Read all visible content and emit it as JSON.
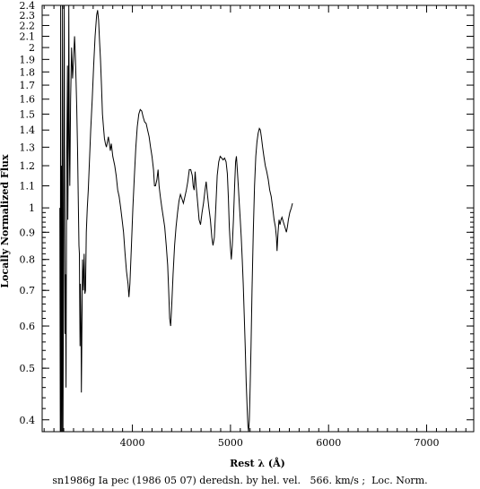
{
  "chart_data": {
    "type": "line",
    "xlabel": "Rest λ (Å)",
    "ylabel": "Locally Normalized Flux",
    "caption": "sn1986g Ia pec (1986 05 07) deredsh. by hel. vel.   566. km/s ;  Loc. Norm.",
    "xlim": [
      3080,
      7480
    ],
    "ylim": [
      0.38,
      2.4
    ],
    "y_scale": "log",
    "x_ticks": [
      4000,
      5000,
      6000,
      7000
    ],
    "x_minor_step": 100,
    "y_ticks": [
      0.4,
      0.5,
      0.6,
      0.7,
      0.8,
      0.9,
      1,
      1.1,
      1.2,
      1.3,
      1.4,
      1.5,
      1.6,
      1.7,
      1.8,
      1.9,
      2,
      2.1,
      2.2,
      2.3,
      2.4
    ],
    "grid": false,
    "series": [
      {
        "points": [
          [
            3260,
            1.0
          ],
          [
            3265,
            0.38
          ],
          [
            3268,
            2.4
          ],
          [
            3272,
            0.38
          ],
          [
            3276,
            1.2
          ],
          [
            3282,
            0.38
          ],
          [
            3287,
            2.4
          ],
          [
            3292,
            0.38
          ],
          [
            3300,
            1.0
          ],
          [
            3305,
            2.4
          ],
          [
            3312,
            0.58
          ],
          [
            3318,
            0.75
          ],
          [
            3323,
            0.46
          ],
          [
            3330,
            1.2
          ],
          [
            3338,
            1.85
          ],
          [
            3342,
            0.95
          ],
          [
            3348,
            1.45
          ],
          [
            3352,
            2.4
          ],
          [
            3357,
            1.3
          ],
          [
            3362,
            1.1
          ],
          [
            3370,
            1.6
          ],
          [
            3380,
            2.0
          ],
          [
            3390,
            1.75
          ],
          [
            3400,
            1.9
          ],
          [
            3410,
            2.1
          ],
          [
            3418,
            1.95
          ],
          [
            3425,
            1.75
          ],
          [
            3432,
            1.55
          ],
          [
            3440,
            1.3
          ],
          [
            3448,
            1.05
          ],
          [
            3455,
            0.85
          ],
          [
            3460,
            0.82
          ],
          [
            3466,
            0.55
          ],
          [
            3470,
            0.72
          ],
          [
            3476,
            0.6
          ],
          [
            3480,
            0.45
          ],
          [
            3486,
            0.62
          ],
          [
            3492,
            0.8
          ],
          [
            3500,
            0.7
          ],
          [
            3508,
            0.82
          ],
          [
            3515,
            0.69
          ],
          [
            3522,
            0.7
          ],
          [
            3530,
            0.9
          ],
          [
            3540,
            1.0
          ],
          [
            3550,
            1.08
          ],
          [
            3560,
            1.2
          ],
          [
            3575,
            1.4
          ],
          [
            3590,
            1.6
          ],
          [
            3605,
            1.85
          ],
          [
            3620,
            2.1
          ],
          [
            3635,
            2.3
          ],
          [
            3645,
            2.35
          ],
          [
            3655,
            2.25
          ],
          [
            3665,
            2.05
          ],
          [
            3675,
            1.9
          ],
          [
            3685,
            1.7
          ],
          [
            3695,
            1.5
          ],
          [
            3705,
            1.42
          ],
          [
            3715,
            1.35
          ],
          [
            3725,
            1.32
          ],
          [
            3735,
            1.3
          ],
          [
            3745,
            1.33
          ],
          [
            3755,
            1.36
          ],
          [
            3765,
            1.32
          ],
          [
            3775,
            1.28
          ],
          [
            3785,
            1.32
          ],
          [
            3800,
            1.25
          ],
          [
            3820,
            1.2
          ],
          [
            3835,
            1.15
          ],
          [
            3850,
            1.08
          ],
          [
            3865,
            1.05
          ],
          [
            3880,
            1.0
          ],
          [
            3895,
            0.95
          ],
          [
            3910,
            0.9
          ],
          [
            3925,
            0.82
          ],
          [
            3940,
            0.76
          ],
          [
            3955,
            0.72
          ],
          [
            3965,
            0.68
          ],
          [
            3975,
            0.72
          ],
          [
            3990,
            0.85
          ],
          [
            4005,
            1.0
          ],
          [
            4020,
            1.15
          ],
          [
            4035,
            1.3
          ],
          [
            4050,
            1.42
          ],
          [
            4065,
            1.5
          ],
          [
            4080,
            1.53
          ],
          [
            4095,
            1.52
          ],
          [
            4110,
            1.48
          ],
          [
            4125,
            1.45
          ],
          [
            4140,
            1.44
          ],
          [
            4155,
            1.4
          ],
          [
            4170,
            1.36
          ],
          [
            4185,
            1.3
          ],
          [
            4200,
            1.25
          ],
          [
            4215,
            1.18
          ],
          [
            4225,
            1.1
          ],
          [
            4235,
            1.1
          ],
          [
            4250,
            1.13
          ],
          [
            4262,
            1.18
          ],
          [
            4272,
            1.1
          ],
          [
            4285,
            1.05
          ],
          [
            4300,
            1.0
          ],
          [
            4315,
            0.96
          ],
          [
            4330,
            0.92
          ],
          [
            4345,
            0.85
          ],
          [
            4360,
            0.78
          ],
          [
            4370,
            0.7
          ],
          [
            4380,
            0.62
          ],
          [
            4390,
            0.6
          ],
          [
            4400,
            0.65
          ],
          [
            4415,
            0.75
          ],
          [
            4430,
            0.85
          ],
          [
            4445,
            0.92
          ],
          [
            4460,
            0.98
          ],
          [
            4475,
            1.03
          ],
          [
            4490,
            1.06
          ],
          [
            4505,
            1.04
          ],
          [
            4520,
            1.02
          ],
          [
            4535,
            1.05
          ],
          [
            4550,
            1.08
          ],
          [
            4565,
            1.12
          ],
          [
            4580,
            1.18
          ],
          [
            4595,
            1.18
          ],
          [
            4610,
            1.15
          ],
          [
            4620,
            1.1
          ],
          [
            4630,
            1.08
          ],
          [
            4640,
            1.17
          ],
          [
            4650,
            1.1
          ],
          [
            4660,
            1.05
          ],
          [
            4670,
            1.0
          ],
          [
            4680,
            0.95
          ],
          [
            4695,
            0.93
          ],
          [
            4710,
            0.98
          ],
          [
            4725,
            1.02
          ],
          [
            4740,
            1.08
          ],
          [
            4752,
            1.12
          ],
          [
            4765,
            1.06
          ],
          [
            4780,
            1.0
          ],
          [
            4795,
            0.95
          ],
          [
            4810,
            0.88
          ],
          [
            4822,
            0.85
          ],
          [
            4835,
            0.88
          ],
          [
            4850,
            1.0
          ],
          [
            4865,
            1.15
          ],
          [
            4880,
            1.22
          ],
          [
            4895,
            1.25
          ],
          [
            4910,
            1.24
          ],
          [
            4925,
            1.23
          ],
          [
            4940,
            1.24
          ],
          [
            4955,
            1.22
          ],
          [
            4968,
            1.16
          ],
          [
            4978,
            1.05
          ],
          [
            4988,
            0.92
          ],
          [
            4998,
            0.85
          ],
          [
            5008,
            0.8
          ],
          [
            5018,
            0.85
          ],
          [
            5030,
            0.95
          ],
          [
            5042,
            1.1
          ],
          [
            5052,
            1.22
          ],
          [
            5060,
            1.25
          ],
          [
            5070,
            1.18
          ],
          [
            5080,
            1.1
          ],
          [
            5090,
            1.02
          ],
          [
            5100,
            0.95
          ],
          [
            5110,
            0.88
          ],
          [
            5120,
            0.8
          ],
          [
            5130,
            0.72
          ],
          [
            5140,
            0.63
          ],
          [
            5150,
            0.55
          ],
          [
            5160,
            0.47
          ],
          [
            5170,
            0.42
          ],
          [
            5178,
            0.39
          ],
          [
            5185,
            0.38
          ],
          [
            5192,
            0.4
          ],
          [
            5200,
            0.46
          ],
          [
            5210,
            0.55
          ],
          [
            5220,
            0.7
          ],
          [
            5232,
            0.9
          ],
          [
            5245,
            1.1
          ],
          [
            5258,
            1.25
          ],
          [
            5270,
            1.33
          ],
          [
            5282,
            1.38
          ],
          [
            5295,
            1.41
          ],
          [
            5305,
            1.4
          ],
          [
            5315,
            1.36
          ],
          [
            5328,
            1.3
          ],
          [
            5340,
            1.25
          ],
          [
            5355,
            1.2
          ],
          [
            5370,
            1.17
          ],
          [
            5385,
            1.13
          ],
          [
            5400,
            1.08
          ],
          [
            5415,
            1.05
          ],
          [
            5430,
            1.0
          ],
          [
            5445,
            0.95
          ],
          [
            5458,
            0.92
          ],
          [
            5468,
            0.88
          ],
          [
            5475,
            0.83
          ],
          [
            5485,
            0.9
          ],
          [
            5495,
            0.95
          ],
          [
            5505,
            0.93
          ],
          [
            5515,
            0.95
          ],
          [
            5525,
            0.96
          ],
          [
            5540,
            0.94
          ],
          [
            5555,
            0.92
          ],
          [
            5570,
            0.9
          ],
          [
            5580,
            0.92
          ],
          [
            5590,
            0.95
          ],
          [
            5605,
            0.98
          ],
          [
            5620,
            1.0
          ],
          [
            5632,
            1.02
          ]
        ]
      }
    ]
  }
}
